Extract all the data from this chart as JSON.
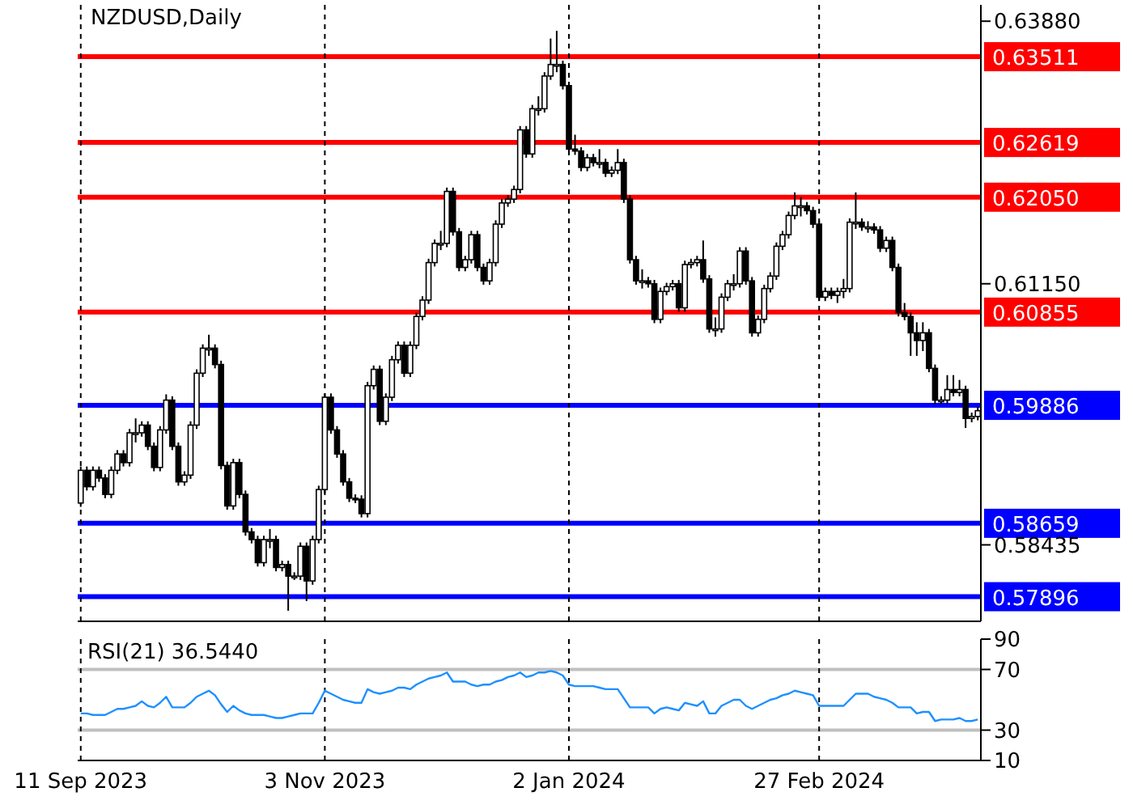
{
  "chart_data": [
    {
      "type": "candlestick",
      "title": "NZDUSD,Daily",
      "tick_labels": "y",
      "grid": "x",
      "ylim": [
        0.5764,
        0.6405
      ],
      "yticks": [
        {
          "value": 0.6388,
          "label": "0.63880"
        },
        {
          "value": 0.6115,
          "label": "0.61150"
        },
        {
          "value": 0.58435,
          "label": "0.58435"
        }
      ],
      "ref_lines": [
        {
          "axis": "y",
          "value": 0.63511,
          "label": "0.63511",
          "color": "#ff0000"
        },
        {
          "axis": "y",
          "value": 0.62619,
          "label": "0.62619",
          "color": "#ff0000"
        },
        {
          "axis": "y",
          "value": 0.6205,
          "label": "0.62050",
          "color": "#ff0000"
        },
        {
          "axis": "y",
          "value": 0.60855,
          "label": "0.60855",
          "color": "#ff0000"
        },
        {
          "axis": "y",
          "value": 0.59886,
          "label": "0.59886",
          "color": "#0000ff"
        },
        {
          "axis": "y",
          "value": 0.58659,
          "label": "0.58659",
          "color": "#0000ff"
        },
        {
          "axis": "y",
          "value": 0.57896,
          "label": "0.57896",
          "color": "#0000ff"
        }
      ],
      "ohlc": [
        [
          0.5887,
          0.5925,
          0.5883,
          0.5921
        ],
        [
          0.5921,
          0.5925,
          0.59,
          0.5904
        ],
        [
          0.5904,
          0.5925,
          0.59,
          0.5921
        ],
        [
          0.5921,
          0.5925,
          0.5909,
          0.5913
        ],
        [
          0.5913,
          0.5917,
          0.5892,
          0.5896
        ],
        [
          0.5896,
          0.5925,
          0.5892,
          0.5921
        ],
        [
          0.5921,
          0.5942,
          0.5917,
          0.5938
        ],
        [
          0.5938,
          0.5942,
          0.5925,
          0.5929
        ],
        [
          0.5929,
          0.5964,
          0.5925,
          0.596
        ],
        [
          0.596,
          0.5975,
          0.595,
          0.596
        ],
        [
          0.596,
          0.5972,
          0.5956,
          0.5968
        ],
        [
          0.5968,
          0.5972,
          0.5942,
          0.5946
        ],
        [
          0.5946,
          0.595,
          0.592,
          0.5924
        ],
        [
          0.5924,
          0.5967,
          0.592,
          0.5963
        ],
        [
          0.5963,
          0.6,
          0.5959,
          0.5994
        ],
        [
          0.5994,
          0.5998,
          0.5942,
          0.5946
        ],
        [
          0.5946,
          0.595,
          0.5905,
          0.5909
        ],
        [
          0.5909,
          0.592,
          0.5905,
          0.5916
        ],
        [
          0.5916,
          0.5972,
          0.5912,
          0.5968
        ],
        [
          0.5968,
          0.6026,
          0.5964,
          0.6022
        ],
        [
          0.6022,
          0.6052,
          0.6018,
          0.6048
        ],
        [
          0.6048,
          0.6062,
          0.604,
          0.6048
        ],
        [
          0.6048,
          0.6052,
          0.6027,
          0.6031
        ],
        [
          0.6031,
          0.6035,
          0.5922,
          0.5926
        ],
        [
          0.5926,
          0.593,
          0.588,
          0.5884
        ],
        [
          0.5884,
          0.5933,
          0.588,
          0.5929
        ],
        [
          0.5929,
          0.5933,
          0.5892,
          0.5896
        ],
        [
          0.5896,
          0.59,
          0.5853,
          0.5857
        ],
        [
          0.5857,
          0.5861,
          0.5845,
          0.5849
        ],
        [
          0.5849,
          0.5853,
          0.5821,
          0.5825
        ],
        [
          0.5825,
          0.5853,
          0.5821,
          0.5849
        ],
        [
          0.5849,
          0.586,
          0.584,
          0.5849
        ],
        [
          0.5849,
          0.5853,
          0.5816,
          0.582
        ],
        [
          0.582,
          0.5827,
          0.5816,
          0.5823
        ],
        [
          0.5823,
          0.5827,
          0.5775,
          0.5811
        ],
        [
          0.5811,
          0.5815,
          0.5807,
          0.5811
        ],
        [
          0.5811,
          0.5846,
          0.5807,
          0.5842
        ],
        [
          0.5842,
          0.5846,
          0.5785,
          0.5806
        ],
        [
          0.5806,
          0.5853,
          0.5802,
          0.5849
        ],
        [
          0.5849,
          0.5905,
          0.5845,
          0.5901
        ],
        [
          0.5901,
          0.6001,
          0.5897,
          0.5997
        ],
        [
          0.5997,
          0.6001,
          0.5959,
          0.5963
        ],
        [
          0.5963,
          0.5967,
          0.5934,
          0.5938
        ],
        [
          0.5938,
          0.5942,
          0.5905,
          0.5909
        ],
        [
          0.5909,
          0.5913,
          0.5888,
          0.5892
        ],
        [
          0.5892,
          0.5896,
          0.5887,
          0.5891
        ],
        [
          0.5891,
          0.5895,
          0.5872,
          0.5876
        ],
        [
          0.5876,
          0.6013,
          0.5872,
          0.6009
        ],
        [
          0.6009,
          0.603,
          0.6005,
          0.6026
        ],
        [
          0.6026,
          0.603,
          0.5968,
          0.5972
        ],
        [
          0.5972,
          0.6001,
          0.5968,
          0.5997
        ],
        [
          0.5997,
          0.604,
          0.5993,
          0.6036
        ],
        [
          0.6036,
          0.6055,
          0.6032,
          0.6051
        ],
        [
          0.6051,
          0.6055,
          0.6018,
          0.6022
        ],
        [
          0.6022,
          0.6055,
          0.6018,
          0.6051
        ],
        [
          0.6051,
          0.6085,
          0.6047,
          0.6081
        ],
        [
          0.6081,
          0.6102,
          0.6077,
          0.6098
        ],
        [
          0.6098,
          0.6141,
          0.6094,
          0.6137
        ],
        [
          0.6137,
          0.6161,
          0.6133,
          0.6157
        ],
        [
          0.6157,
          0.617,
          0.615,
          0.6157
        ],
        [
          0.6157,
          0.6215,
          0.6153,
          0.6211
        ],
        [
          0.6211,
          0.6215,
          0.6165,
          0.6169
        ],
        [
          0.6169,
          0.6173,
          0.6128,
          0.6132
        ],
        [
          0.6132,
          0.6144,
          0.6128,
          0.614
        ],
        [
          0.614,
          0.617,
          0.6136,
          0.6166
        ],
        [
          0.6166,
          0.617,
          0.6128,
          0.6132
        ],
        [
          0.6132,
          0.6136,
          0.6114,
          0.6118
        ],
        [
          0.6118,
          0.6141,
          0.6114,
          0.6137
        ],
        [
          0.6137,
          0.6181,
          0.6133,
          0.6177
        ],
        [
          0.6177,
          0.6203,
          0.6173,
          0.6199
        ],
        [
          0.6199,
          0.6207,
          0.6195,
          0.6203
        ],
        [
          0.6203,
          0.6217,
          0.6199,
          0.6213
        ],
        [
          0.6213,
          0.6279,
          0.6209,
          0.6275
        ],
        [
          0.6275,
          0.6279,
          0.6246,
          0.625
        ],
        [
          0.625,
          0.6301,
          0.6246,
          0.6297
        ],
        [
          0.6297,
          0.631,
          0.629,
          0.6297
        ],
        [
          0.6297,
          0.6335,
          0.6293,
          0.6331
        ],
        [
          0.6331,
          0.637,
          0.6327,
          0.6343
        ],
        [
          0.6343,
          0.6378,
          0.6335,
          0.6343
        ],
        [
          0.6343,
          0.6347,
          0.6317,
          0.6321
        ],
        [
          0.6321,
          0.6325,
          0.6251,
          0.6255
        ],
        [
          0.6255,
          0.627,
          0.6249,
          0.6253
        ],
        [
          0.6253,
          0.6257,
          0.6232,
          0.6236
        ],
        [
          0.6236,
          0.625,
          0.6232,
          0.6246
        ],
        [
          0.6246,
          0.625,
          0.6237,
          0.6241
        ],
        [
          0.6241,
          0.6255,
          0.6235,
          0.6241
        ],
        [
          0.6241,
          0.6245,
          0.6226,
          0.623
        ],
        [
          0.623,
          0.6237,
          0.6226,
          0.6233
        ],
        [
          0.6233,
          0.6255,
          0.6229,
          0.6241
        ],
        [
          0.6241,
          0.6245,
          0.6199,
          0.6203
        ],
        [
          0.6203,
          0.6207,
          0.6136,
          0.614
        ],
        [
          0.614,
          0.6144,
          0.6114,
          0.6118
        ],
        [
          0.6118,
          0.613,
          0.611,
          0.6118
        ],
        [
          0.6118,
          0.6122,
          0.6111,
          0.6115
        ],
        [
          0.6115,
          0.6119,
          0.6074,
          0.6078
        ],
        [
          0.6078,
          0.6111,
          0.6074,
          0.6107
        ],
        [
          0.6107,
          0.6116,
          0.6103,
          0.6112
        ],
        [
          0.6112,
          0.6119,
          0.6108,
          0.6115
        ],
        [
          0.6115,
          0.6119,
          0.6086,
          0.609
        ],
        [
          0.609,
          0.6139,
          0.6086,
          0.6135
        ],
        [
          0.6135,
          0.6141,
          0.6131,
          0.6137
        ],
        [
          0.6137,
          0.6144,
          0.6133,
          0.614
        ],
        [
          0.614,
          0.616,
          0.6116,
          0.612
        ],
        [
          0.612,
          0.6124,
          0.6064,
          0.6068
        ],
        [
          0.6068,
          0.608,
          0.606,
          0.6068
        ],
        [
          0.6068,
          0.6105,
          0.6064,
          0.6101
        ],
        [
          0.6101,
          0.6119,
          0.6097,
          0.6115
        ],
        [
          0.6115,
          0.6125,
          0.6108,
          0.6115
        ],
        [
          0.6115,
          0.6153,
          0.6111,
          0.6149
        ],
        [
          0.6149,
          0.6153,
          0.6114,
          0.6118
        ],
        [
          0.6118,
          0.6122,
          0.606,
          0.6064
        ],
        [
          0.6064,
          0.6082,
          0.606,
          0.6078
        ],
        [
          0.6078,
          0.6114,
          0.6074,
          0.611
        ],
        [
          0.611,
          0.6127,
          0.6106,
          0.6123
        ],
        [
          0.6123,
          0.6158,
          0.6119,
          0.6154
        ],
        [
          0.6154,
          0.617,
          0.615,
          0.6166
        ],
        [
          0.6166,
          0.619,
          0.6162,
          0.6186
        ],
        [
          0.6186,
          0.621,
          0.6182,
          0.6196
        ],
        [
          0.6196,
          0.6205,
          0.6185,
          0.6196
        ],
        [
          0.6196,
          0.62,
          0.6187,
          0.6191
        ],
        [
          0.6191,
          0.6195,
          0.6173,
          0.6177
        ],
        [
          0.6177,
          0.6181,
          0.6097,
          0.6101
        ],
        [
          0.6101,
          0.6111,
          0.6097,
          0.6107
        ],
        [
          0.6107,
          0.6111,
          0.6099,
          0.6103
        ],
        [
          0.6103,
          0.6111,
          0.6095,
          0.6107
        ],
        [
          0.6107,
          0.612,
          0.61,
          0.611
        ],
        [
          0.611,
          0.6183,
          0.6106,
          0.6179
        ],
        [
          0.6179,
          0.621,
          0.6172,
          0.6179
        ],
        [
          0.6179,
          0.6183,
          0.617,
          0.6174
        ],
        [
          0.6174,
          0.618,
          0.6168,
          0.6174
        ],
        [
          0.6174,
          0.6178,
          0.6167,
          0.6171
        ],
        [
          0.6171,
          0.6175,
          0.6148,
          0.6152
        ],
        [
          0.6152,
          0.6164,
          0.6148,
          0.616
        ],
        [
          0.616,
          0.6164,
          0.6128,
          0.6132
        ],
        [
          0.6132,
          0.6136,
          0.6081,
          0.6085
        ],
        [
          0.6085,
          0.6095,
          0.6077,
          0.6081
        ],
        [
          0.6081,
          0.6085,
          0.604,
          0.6064
        ],
        [
          0.6064,
          0.6075,
          0.604,
          0.6056
        ],
        [
          0.6056,
          0.6075,
          0.6045,
          0.6064
        ],
        [
          0.6064,
          0.6068,
          0.6023,
          0.6027
        ],
        [
          0.6027,
          0.6031,
          0.599,
          0.5994
        ],
        [
          0.5994,
          0.5998,
          0.599,
          0.5994
        ],
        [
          0.5994,
          0.602,
          0.599,
          0.6005
        ],
        [
          0.6005,
          0.602,
          0.5998,
          0.6002
        ],
        [
          0.6002,
          0.6015,
          0.5998,
          0.6005
        ],
        [
          0.6005,
          0.6009,
          0.5965,
          0.5975
        ],
        [
          0.5975,
          0.5981,
          0.5971,
          0.5977
        ],
        [
          0.5977,
          0.5987,
          0.5973,
          0.5983
        ]
      ]
    },
    {
      "type": "line",
      "title": "RSI(21) 36.5440",
      "grid": "x",
      "marker": "none",
      "line_style": "solid",
      "categories": [
        "11 Sep 2023",
        null,
        null,
        null,
        null,
        null,
        null,
        null,
        null,
        null,
        null,
        null,
        null,
        null,
        null,
        null,
        null,
        null,
        null,
        null,
        null,
        null,
        null,
        null,
        null,
        null,
        null,
        null,
        null,
        null,
        null,
        null,
        null,
        null,
        null,
        null,
        null,
        null,
        null,
        null,
        "3 Nov 2023",
        null,
        null,
        null,
        null,
        null,
        null,
        null,
        null,
        null,
        null,
        null,
        null,
        null,
        null,
        null,
        null,
        null,
        null,
        null,
        null,
        null,
        null,
        null,
        null,
        null,
        null,
        null,
        null,
        null,
        null,
        null,
        null,
        null,
        null,
        null,
        null,
        null,
        null,
        null,
        "2 Jan 2024",
        null,
        null,
        null,
        null,
        null,
        null,
        null,
        null,
        null,
        null,
        null,
        null,
        null,
        null,
        null,
        null,
        null,
        null,
        null,
        null,
        null,
        null,
        null,
        null,
        null,
        null,
        null,
        null,
        null,
        null,
        null,
        null,
        null,
        null,
        null,
        null,
        null,
        null,
        null,
        null,
        "27 Feb 2024",
        null,
        null,
        null,
        null,
        null,
        null,
        null,
        null,
        null,
        null,
        null,
        null,
        null,
        null,
        null,
        null,
        null,
        null,
        null,
        null,
        null,
        null,
        null,
        null,
        null,
        null
      ],
      "ylim": [
        10,
        90
      ],
      "yticks": [
        10,
        30,
        70,
        90
      ],
      "ref_lines": [
        {
          "axis": "y",
          "value": 70,
          "color": "#c0c0c0"
        },
        {
          "axis": "y",
          "value": 30,
          "color": "#c0c0c0"
        }
      ],
      "series": [
        {
          "color": "#1e90ff",
          "values": [
            41,
            41,
            40,
            40,
            40,
            42,
            44,
            44,
            45,
            46,
            49,
            46,
            45,
            48,
            52,
            45,
            45,
            45,
            48,
            52,
            54,
            56,
            53,
            47,
            42,
            46,
            43,
            41,
            40,
            40,
            40,
            39,
            38,
            38,
            39,
            40,
            41,
            41,
            41,
            48,
            56,
            54,
            52,
            50,
            49,
            48,
            48,
            57,
            55,
            54,
            55,
            56,
            58,
            58,
            57,
            60,
            62,
            64,
            65,
            66,
            68,
            62,
            62,
            62,
            60,
            59,
            60,
            60,
            62,
            63,
            65,
            66,
            68,
            65,
            66,
            68,
            68,
            69,
            68,
            66,
            60,
            59,
            59,
            59,
            59,
            58,
            57,
            57,
            57,
            51,
            45,
            45,
            45,
            45,
            41,
            44,
            45,
            44,
            43,
            48,
            47,
            46,
            49,
            41,
            41,
            46,
            48,
            50,
            50,
            46,
            44,
            46,
            48,
            50,
            51,
            53,
            54,
            56,
            55,
            54,
            53,
            46,
            46,
            46,
            46,
            46,
            50,
            54,
            54,
            54,
            52,
            51,
            50,
            48,
            45,
            45,
            45,
            41,
            42,
            42,
            36,
            37,
            37,
            37,
            38,
            36,
            36,
            37
          ]
        }
      ]
    }
  ]
}
